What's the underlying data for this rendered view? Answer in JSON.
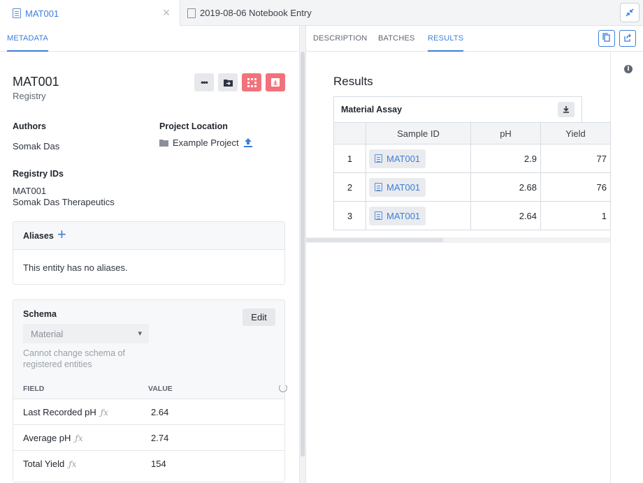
{
  "tabs": [
    {
      "label": "MAT001",
      "icon": "entity-doc-icon",
      "active": true
    },
    {
      "label": "2019-08-06 Notebook Entry",
      "icon": "document-icon",
      "active": false
    }
  ],
  "left": {
    "subtab": "METADATA",
    "entity": {
      "name": "MAT001",
      "type": "Registry"
    },
    "actions": [
      "more-icon",
      "move-to-folder-icon",
      "register-icon",
      "archive-icon"
    ],
    "authors": {
      "label": "Authors",
      "value": "Somak Das"
    },
    "project": {
      "label": "Project Location",
      "value": "Example Project"
    },
    "registry_ids": {
      "label": "Registry IDs",
      "id": "MAT001",
      "registry": "Somak Das Therapeutics"
    },
    "aliases": {
      "title": "Aliases",
      "empty_text": "This entity has no aliases."
    },
    "schema": {
      "title": "Schema",
      "edit_label": "Edit",
      "selected": "Material",
      "note": "Cannot change schema of registered entities",
      "field_header": "FIELD",
      "value_header": "VALUE",
      "fields": [
        {
          "name": "Last Recorded pH",
          "value": "2.64"
        },
        {
          "name": "Average pH",
          "value": "2.74"
        },
        {
          "name": "Total Yield",
          "value": "154"
        }
      ]
    }
  },
  "right": {
    "tabs": [
      "DESCRIPTION",
      "BATCHES",
      "RESULTS"
    ],
    "active_tab": "RESULTS",
    "results_title": "Results",
    "assay": {
      "title": "Material Assay",
      "columns": [
        "Sample ID",
        "pH",
        "Yield"
      ],
      "rows": [
        {
          "index": "1",
          "sample": "MAT001",
          "ph": "2.9",
          "yield": "77"
        },
        {
          "index": "2",
          "sample": "MAT001",
          "ph": "2.68",
          "yield": "76"
        },
        {
          "index": "3",
          "sample": "MAT001",
          "ph": "2.64",
          "yield": "1"
        }
      ]
    }
  },
  "colors": {
    "accent": "#3d7fd9",
    "danger": "#f2727b"
  }
}
